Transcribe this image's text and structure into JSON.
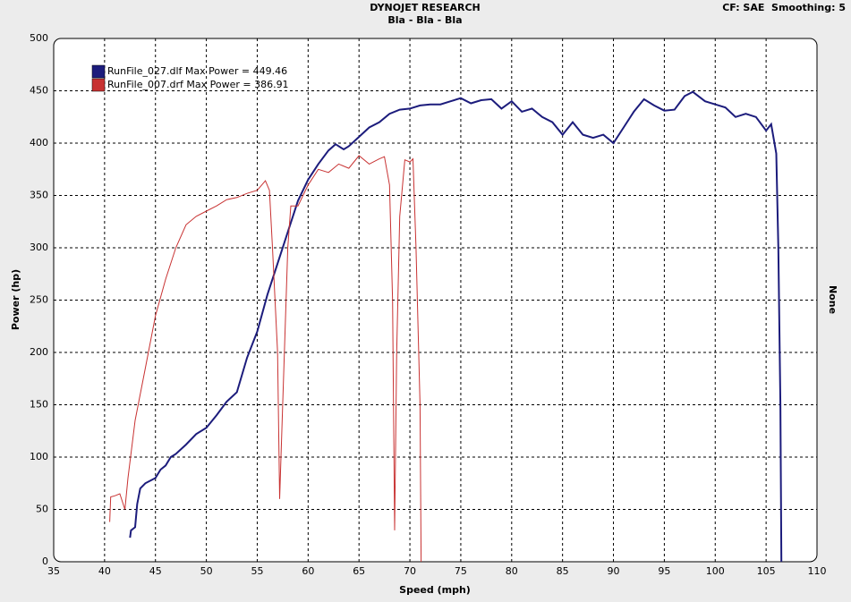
{
  "chart_data": {
    "type": "line",
    "title": "DYNOJET RESEARCH",
    "subtitle": "Bla - Bla - Bla",
    "annotation": "CF: SAE  Smoothing: 5",
    "right_axis_label": "None",
    "xlabel": "Speed (mph)",
    "ylabel": "Power (hp)",
    "xlim": [
      35,
      110
    ],
    "xticks": [
      35,
      40,
      45,
      50,
      55,
      60,
      65,
      70,
      75,
      80,
      85,
      90,
      95,
      100,
      105,
      110
    ],
    "ylim": [
      0,
      500
    ],
    "yticks": [
      0,
      50,
      100,
      150,
      200,
      250,
      300,
      350,
      400,
      450,
      500
    ],
    "grid": true,
    "series": [
      {
        "name": "RunFile_027.dlf Max Power = 449.46",
        "color": "#1c1c7c",
        "x": [
          42.5,
          42.6,
          43,
          43.2,
          43.5,
          44,
          45,
          45.5,
          46,
          46.5,
          47,
          48,
          49,
          50,
          51,
          52,
          53,
          54,
          55,
          56,
          57,
          58,
          59,
          60,
          61,
          62,
          62.7,
          63.5,
          64,
          65,
          66,
          67,
          68,
          69,
          70,
          71,
          72,
          73,
          74,
          75,
          76,
          77,
          78,
          79,
          80,
          81,
          82,
          83,
          84,
          85,
          86,
          87,
          88,
          89,
          90,
          91,
          92,
          93,
          94,
          95,
          96,
          97,
          97.8,
          99,
          100,
          101,
          102,
          103,
          104,
          105,
          105.5,
          106,
          106.2,
          106.4,
          106.5
        ],
        "values": [
          23,
          30,
          33,
          55,
          70,
          75,
          80,
          88,
          92,
          100,
          103,
          112,
          122,
          128,
          140,
          153,
          162,
          195,
          220,
          255,
          285,
          315,
          345,
          365,
          380,
          393,
          399,
          394,
          397,
          406,
          415,
          420,
          428,
          432,
          433,
          436,
          437,
          437,
          440,
          443,
          438,
          441,
          442,
          433,
          440,
          430,
          433,
          425,
          420,
          408,
          420,
          408,
          405,
          408,
          400,
          415,
          430,
          442,
          436,
          431,
          432,
          445,
          449,
          440,
          437,
          434,
          425,
          428,
          425,
          412,
          418,
          390,
          300,
          150,
          0
        ]
      },
      {
        "name": "RunFile_007.drf Max Power = 386.91",
        "color": "#c83232",
        "x": [
          40.5,
          40.6,
          41,
          41.5,
          42,
          42.3,
          43,
          44,
          45,
          46,
          47,
          48,
          49,
          50,
          51,
          52,
          53,
          54,
          55,
          55.8,
          56.2,
          56.5,
          57,
          57.2,
          57.5,
          58,
          58.3,
          59,
          60,
          61,
          62,
          63,
          64,
          65,
          66,
          67,
          67.5,
          68,
          68.3,
          68.5,
          68.7,
          69,
          69.5,
          70,
          70.3,
          70.6,
          71,
          71.1
        ],
        "values": [
          38,
          62,
          63,
          65,
          50,
          80,
          135,
          185,
          235,
          270,
          300,
          322,
          330,
          335,
          340,
          346,
          348,
          352,
          355,
          364,
          355,
          300,
          200,
          60,
          150,
          300,
          340,
          340,
          360,
          375,
          372,
          380,
          376,
          388,
          380,
          385,
          387,
          360,
          250,
          30,
          200,
          330,
          384,
          382,
          385,
          300,
          150,
          0
        ]
      }
    ]
  }
}
